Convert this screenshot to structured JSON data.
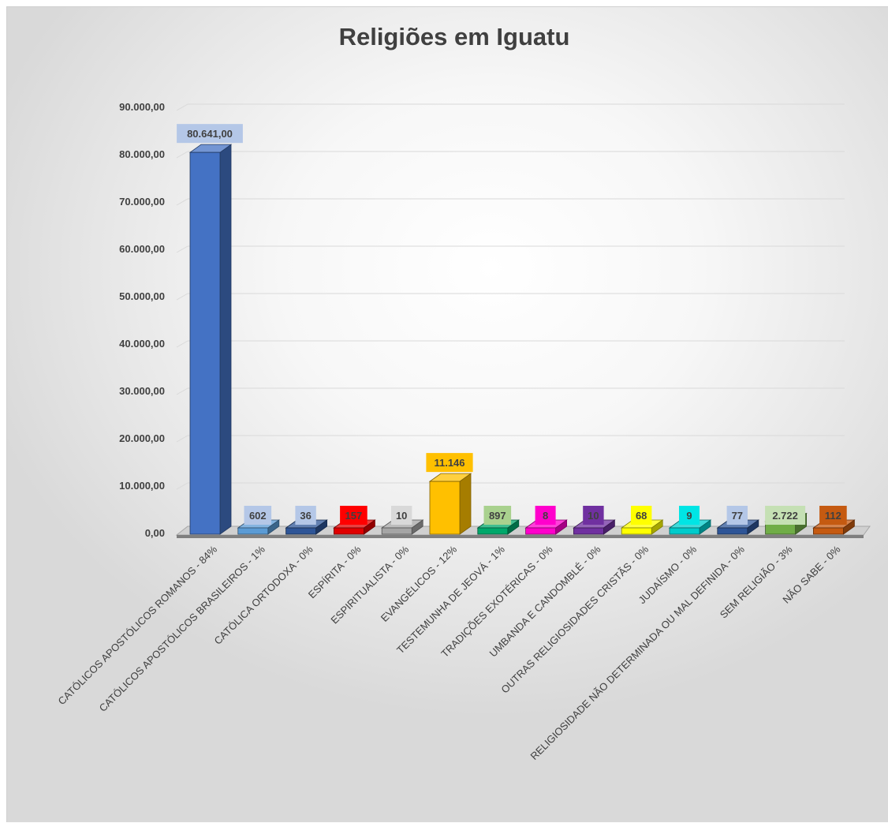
{
  "chart_data": {
    "type": "bar",
    "title": "Religiões em Iguatu",
    "xlabel": "",
    "ylabel": "",
    "ylim": [
      0,
      90000
    ],
    "y_ticks": [
      "0,00",
      "10.000,00",
      "20.000,00",
      "30.000,00",
      "40.000,00",
      "50.000,00",
      "60.000,00",
      "70.000,00",
      "80.000,00",
      "90.000,00"
    ],
    "grid": true,
    "legend": "none",
    "categories": [
      "CATÓLICOS APOSTÓLICOS ROMANOS - 84%",
      "CATÓLICOS APOSTÓLICOS BRASILEIROS - 1%",
      "CATÓLICA ORTODOXA - 0%",
      "ESPÍRITA - 0%",
      "ESPIRITUALISTA - 0%",
      "EVANGÉLICOS - 12%",
      "TESTEMUNHA DE JEOVÁ - 1%",
      "TRADIÇÕES EXOTÉRICAS - 0%",
      "UMBANDA E CANDOMBLÉ - 0%",
      "OUTRAS RELIGIOSIDADES CRISTÃS - 0%",
      "JUDAÍSMO - 0%",
      "RELIGIOSIDADE NÃO DETERMINADA OU MAL DEFINIDA - 0%",
      "SEM RELIGIÃO - 3%",
      "NÃO SABE - 0%"
    ],
    "values": [
      80641,
      602,
      36,
      157,
      10,
      11146,
      897,
      8,
      10,
      68,
      9,
      77,
      2722,
      112
    ],
    "data_labels": [
      "80.641,00",
      "602",
      "36",
      "157",
      "10",
      "11.146",
      "897",
      "8",
      "10",
      "68",
      "9",
      "77",
      "2.722",
      "112"
    ],
    "colors": [
      "#4472C4",
      "#5B9BD5",
      "#2E5597",
      "#E00000",
      "#A5A5A5",
      "#FFC000",
      "#00A86B",
      "#FF00CC",
      "#7030A0",
      "#FFFF00",
      "#00CCCC",
      "#2E5597",
      "#70AD47",
      "#C55A11"
    ],
    "label_bg_colors": [
      "#B4C7E7",
      "#B4C7E7",
      "#B4C7E7",
      "#FF0000",
      "#D9D9D9",
      "#FFC000",
      "#A9D18E",
      "#FF00CC",
      "#7030A0",
      "#FFFF00",
      "#00E5E5",
      "#B4C7E7",
      "#C5E0B4",
      "#C55A11"
    ]
  }
}
